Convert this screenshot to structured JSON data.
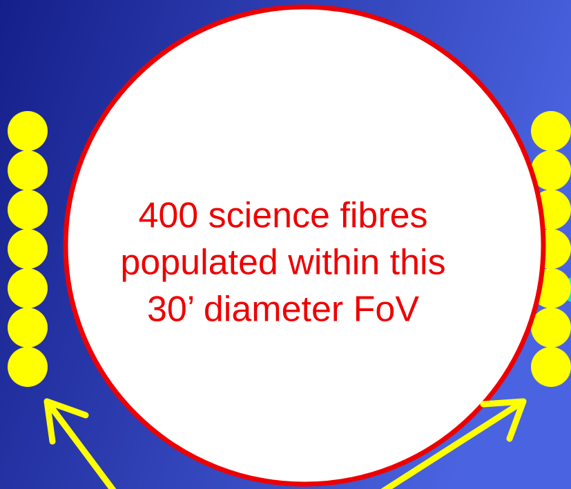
{
  "text_lines": [
    "400 science fibres",
    "populated within this",
    "30’ diameter FoV"
  ]
}
